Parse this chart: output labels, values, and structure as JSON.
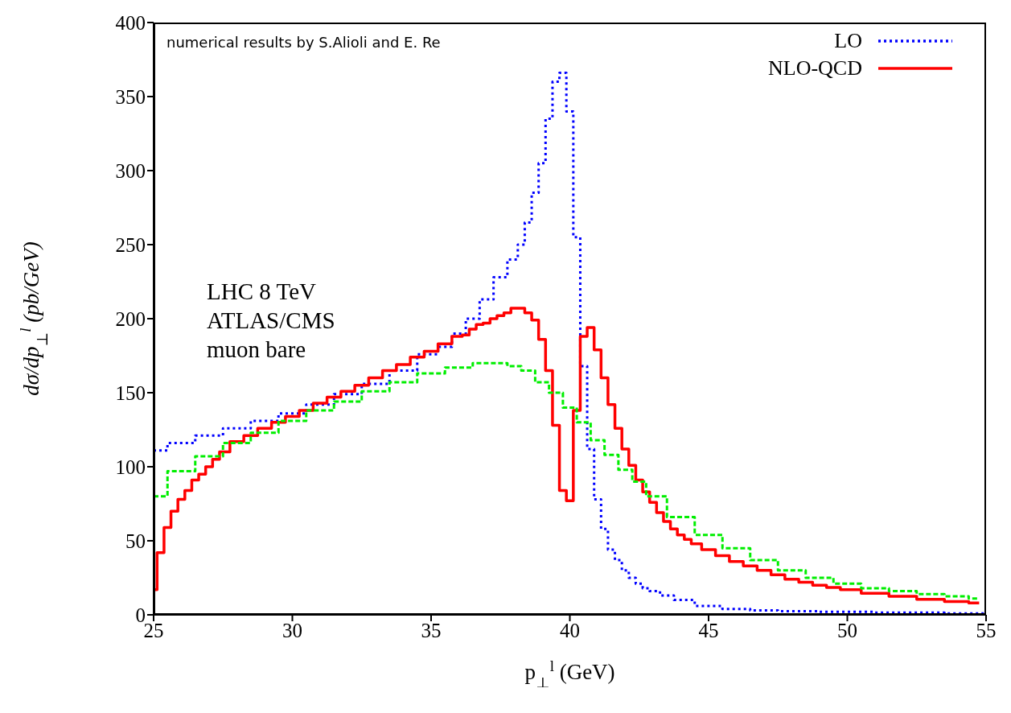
{
  "chart_data": {
    "type": "step",
    "xlabel": "p$_{⊥}$$^{l}$ (GeV)",
    "ylabel": "dσ/dp$_{⊥}$$^{l}$ (pb/GeV)",
    "xlim": [
      25,
      55
    ],
    "xticks": [
      25,
      30,
      35,
      40,
      45,
      50,
      55
    ],
    "ylim": [
      0,
      400
    ],
    "yticks": [
      0,
      50,
      100,
      150,
      200,
      250,
      300,
      350,
      400
    ],
    "legend": "top right",
    "marker": "none",
    "annotations": [
      "numerical results by S.Alioli and E. Re",
      "LHC 8 TeV",
      "ATLAS/CMS",
      "muon bare"
    ],
    "series": [
      {
        "name": "LO",
        "color": "#0000ff",
        "line_style": "dotted",
        "x": [
          25,
          26,
          27,
          28,
          29,
          30,
          31,
          32,
          33,
          34,
          35,
          35.5,
          36,
          36.5,
          37,
          37.5,
          38,
          38.25,
          38.5,
          38.75,
          39,
          39.25,
          39.5,
          39.75,
          40,
          40.25,
          40.5,
          40.75,
          41,
          41.25,
          41.5,
          41.75,
          42,
          42.25,
          42.5,
          42.75,
          43,
          43.5,
          44,
          45,
          46,
          47,
          48,
          50,
          52,
          55
        ],
        "values": [
          111,
          116,
          121,
          126,
          131,
          136,
          142,
          149,
          156,
          165,
          176,
          181,
          190,
          200,
          213,
          228,
          240,
          250,
          265,
          285,
          305,
          335,
          360,
          366,
          340,
          255,
          168,
          112,
          78,
          58,
          44,
          37,
          30,
          25,
          21,
          18,
          16,
          13,
          10,
          6,
          4,
          3,
          2.5,
          2,
          1.5,
          1
        ]
      },
      {
        "name": "NLO-QCD",
        "color": "#ff0000",
        "line_style": "solid",
        "x": [
          25,
          25.25,
          25.5,
          25.75,
          26,
          26.25,
          26.5,
          26.75,
          27,
          27.25,
          27.5,
          28,
          28.5,
          29,
          29.5,
          30,
          30.5,
          31,
          31.5,
          32,
          32.5,
          33,
          33.5,
          34,
          34.5,
          35,
          35.5,
          36,
          36.25,
          36.5,
          36.75,
          37,
          37.25,
          37.5,
          37.75,
          38,
          38.25,
          38.5,
          38.75,
          39,
          39.25,
          39.5,
          39.75,
          40,
          40.25,
          40.5,
          40.75,
          41,
          41.25,
          41.5,
          41.75,
          42,
          42.25,
          42.5,
          42.75,
          43,
          43.25,
          43.5,
          43.75,
          44,
          44.25,
          44.5,
          45,
          45.5,
          46,
          46.5,
          47,
          47.5,
          48,
          48.5,
          49,
          49.5,
          50,
          51,
          52,
          53,
          54,
          54.75
        ],
        "values": [
          17,
          42,
          59,
          70,
          78,
          84,
          91,
          95,
          100,
          105,
          110,
          117,
          121,
          126,
          130,
          134,
          138,
          143,
          147,
          151,
          155,
          160,
          165,
          169,
          174,
          178,
          183,
          188,
          189,
          193,
          196,
          197,
          200,
          202,
          204,
          207,
          207,
          204,
          199,
          186,
          165,
          128,
          84,
          77,
          138,
          188,
          194,
          179,
          160,
          142,
          126,
          112,
          101,
          91,
          83,
          76,
          69,
          63,
          58,
          54,
          51,
          48,
          44,
          40,
          36,
          33,
          30,
          27,
          24,
          22,
          20,
          18.5,
          17,
          14.5,
          12.5,
          10.5,
          9,
          8
        ]
      },
      {
        "color": "#00ee00",
        "line_style": "dashed",
        "x": [
          25,
          26,
          27,
          28,
          29,
          30,
          31,
          32,
          33,
          34,
          35,
          36,
          37,
          37.5,
          38,
          38.5,
          39,
          39.5,
          40,
          40.5,
          41,
          41.5,
          42,
          42.5,
          43,
          44,
          45,
          46,
          47,
          48,
          49,
          50,
          51,
          52,
          53,
          54,
          54.75
        ],
        "values": [
          80,
          97,
          107,
          116,
          123,
          131,
          138,
          144,
          151,
          157,
          163,
          167,
          170,
          170,
          168,
          165,
          157,
          150,
          140,
          130,
          118,
          108,
          98,
          90,
          80,
          66,
          54,
          45,
          37,
          30,
          25,
          21,
          18,
          16,
          14,
          12.5,
          11
        ]
      }
    ]
  }
}
